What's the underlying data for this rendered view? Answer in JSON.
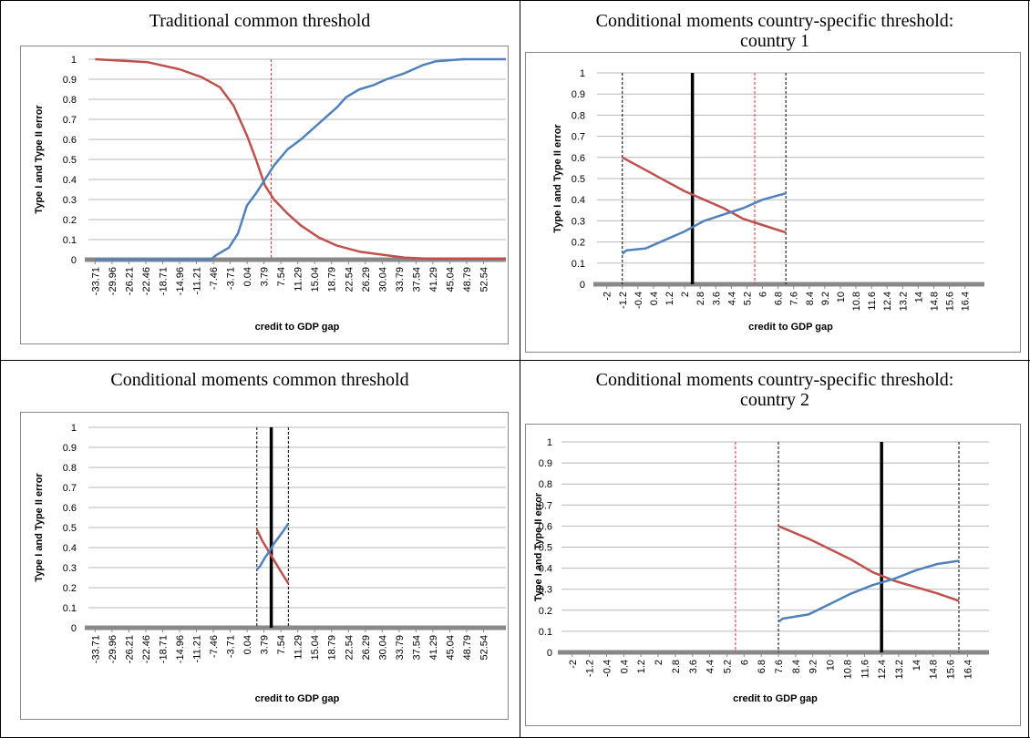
{
  "chart_data": [
    {
      "type": "line",
      "title": "Traditional common threshold",
      "x_label": "credit to GDP gap",
      "y_label": "Type I and Type II error",
      "xlim": [
        -35.2,
        57.5
      ],
      "xticks": [
        -33.71,
        -29.96,
        -26.21,
        -22.46,
        -18.71,
        -14.96,
        -11.21,
        -7.46,
        -3.71,
        0.04,
        3.79,
        7.54,
        11.29,
        15.04,
        18.79,
        22.54,
        26.29,
        30.04,
        33.79,
        37.54,
        41.29,
        45.04,
        48.79,
        52.54
      ],
      "ylim": [
        0,
        1
      ],
      "yticks": [
        0,
        0.1,
        0.2,
        0.3,
        0.4,
        0.5,
        0.6,
        0.7,
        0.8,
        0.9,
        1
      ],
      "grid": true,
      "series": [
        {
          "color": "#c0504d",
          "x": [
            -33.71,
            -22,
            -15,
            -10,
            -6,
            -3,
            0,
            2,
            4,
            6,
            9,
            12,
            16,
            20,
            25,
            30,
            35,
            40,
            57.5
          ],
          "values": [
            1,
            0.985,
            0.95,
            0.91,
            0.86,
            0.77,
            0.62,
            0.5,
            0.37,
            0.3,
            0.23,
            0.17,
            0.11,
            0.07,
            0.04,
            0.025,
            0.01,
            0.005,
            0.005
          ]
        },
        {
          "color": "#4f81bd",
          "x": [
            -33.71,
            -8,
            -7,
            -4,
            -2,
            0,
            2,
            4,
            6,
            9,
            12,
            15,
            18,
            20,
            22,
            25,
            28,
            31,
            35,
            39,
            42,
            48,
            57.5
          ],
          "values": [
            0,
            0,
            0.02,
            0.06,
            0.13,
            0.27,
            0.33,
            0.4,
            0.47,
            0.55,
            0.6,
            0.66,
            0.72,
            0.76,
            0.81,
            0.85,
            0.87,
            0.9,
            0.93,
            0.97,
            0.99,
            1,
            1
          ]
        }
      ],
      "vlines": [
        {
          "x": 5.4,
          "color": "#e03030",
          "style": "dashed"
        }
      ]
    },
    {
      "type": "line",
      "title": "Conditional moments country-specific threshold: country 1",
      "x_label": "credit to GDP gap",
      "y_label": "Type I and Type II error",
      "xlim": [
        -2.5,
        17.4
      ],
      "xticks": [
        -2,
        -1.2,
        -0.4,
        0.4,
        1.2,
        2,
        2.8,
        3.6,
        4.4,
        5.2,
        6,
        6.8,
        7.6,
        8.4,
        9.2,
        10,
        10.8,
        11.6,
        12.4,
        13.2,
        14,
        14.8,
        15.6,
        16.4
      ],
      "ylim": [
        0,
        1
      ],
      "yticks": [
        0,
        0.1,
        0.2,
        0.3,
        0.4,
        0.5,
        0.6,
        0.7,
        0.8,
        0.9,
        1
      ],
      "grid": true,
      "series": [
        {
          "color": "#c0504d",
          "x": [
            -1.2,
            0,
            1,
            2,
            3,
            4,
            5,
            6,
            7.2
          ],
          "values": [
            0.6,
            0.54,
            0.49,
            0.44,
            0.4,
            0.36,
            0.31,
            0.28,
            0.245
          ]
        },
        {
          "color": "#4f81bd",
          "x": [
            -1.2,
            -1,
            0,
            1,
            2,
            3,
            4,
            5,
            6,
            7.2
          ],
          "values": [
            0.145,
            0.16,
            0.17,
            0.21,
            0.25,
            0.3,
            0.33,
            0.36,
            0.4,
            0.43
          ]
        }
      ],
      "vlines": [
        {
          "x": -1.2,
          "color": "#000000",
          "style": "dashed"
        },
        {
          "x": 2.4,
          "color": "#000000",
          "style": "thick"
        },
        {
          "x": 5.6,
          "color": "#e03030",
          "style": "dashed"
        },
        {
          "x": 7.2,
          "color": "#000000",
          "style": "dashed"
        }
      ]
    },
    {
      "type": "line",
      "title": "Conditional moments common threshold",
      "x_label": "credit to GDP gap",
      "y_label": "Type I and Type II error",
      "xlim": [
        -35.2,
        57.5
      ],
      "xticks": [
        -33.71,
        -29.96,
        -26.21,
        -22.46,
        -18.71,
        -14.96,
        -11.21,
        -7.46,
        -3.71,
        0.04,
        3.79,
        7.54,
        11.29,
        15.04,
        18.79,
        22.54,
        26.29,
        30.04,
        33.79,
        37.54,
        41.29,
        45.04,
        48.79,
        52.54
      ],
      "ylim": [
        0,
        1
      ],
      "yticks": [
        0,
        0.1,
        0.2,
        0.3,
        0.4,
        0.5,
        0.6,
        0.7,
        0.8,
        0.9,
        1
      ],
      "grid": true,
      "series": [
        {
          "color": "#c0504d",
          "x": [
            2.2,
            3.5,
            5.4,
            7,
            9.2
          ],
          "values": [
            0.49,
            0.43,
            0.36,
            0.3,
            0.22
          ]
        },
        {
          "color": "#4f81bd",
          "x": [
            2.2,
            3,
            4,
            5,
            6,
            7,
            8,
            9.2
          ],
          "values": [
            0.29,
            0.31,
            0.35,
            0.38,
            0.42,
            0.45,
            0.48,
            0.52
          ]
        }
      ],
      "vlines": [
        {
          "x": 2.2,
          "color": "#000000",
          "style": "dashed"
        },
        {
          "x": 5.4,
          "color": "#000000",
          "style": "thick"
        },
        {
          "x": 9.2,
          "color": "#000000",
          "style": "dashed"
        }
      ]
    },
    {
      "type": "line",
      "title": "Conditional moments country-specific threshold: country 2",
      "x_label": "credit to GDP gap",
      "y_label": "Type I and Type II error",
      "xlim": [
        -2.5,
        17.4
      ],
      "xticks": [
        -2,
        -1.2,
        -0.4,
        0.4,
        1.2,
        2,
        2.8,
        3.6,
        4.4,
        5.2,
        6,
        6.8,
        7.6,
        8.4,
        9.2,
        10,
        10.8,
        11.6,
        12.4,
        13.2,
        14,
        14.8,
        15.6,
        16.4
      ],
      "ylim": [
        0,
        1
      ],
      "yticks": [
        0,
        0.1,
        0.2,
        0.3,
        0.4,
        0.5,
        0.6,
        0.7,
        0.8,
        0.9,
        1
      ],
      "grid": true,
      "series": [
        {
          "color": "#c0504d",
          "x": [
            7.6,
            9,
            10,
            11,
            12,
            13,
            14,
            15,
            16
          ],
          "values": [
            0.6,
            0.54,
            0.49,
            0.44,
            0.38,
            0.34,
            0.31,
            0.28,
            0.245
          ]
        },
        {
          "color": "#4f81bd",
          "x": [
            7.6,
            7.8,
            9,
            10,
            11,
            12,
            13,
            14,
            15,
            16
          ],
          "values": [
            0.145,
            0.16,
            0.18,
            0.23,
            0.28,
            0.32,
            0.35,
            0.39,
            0.42,
            0.435
          ]
        }
      ],
      "vlines": [
        {
          "x": 5.6,
          "color": "#e03030",
          "style": "dashed"
        },
        {
          "x": 7.6,
          "color": "#000000",
          "style": "dashed"
        },
        {
          "x": 12.4,
          "color": "#000000",
          "style": "thick"
        },
        {
          "x": 16,
          "color": "#000000",
          "style": "dashed"
        }
      ]
    }
  ]
}
